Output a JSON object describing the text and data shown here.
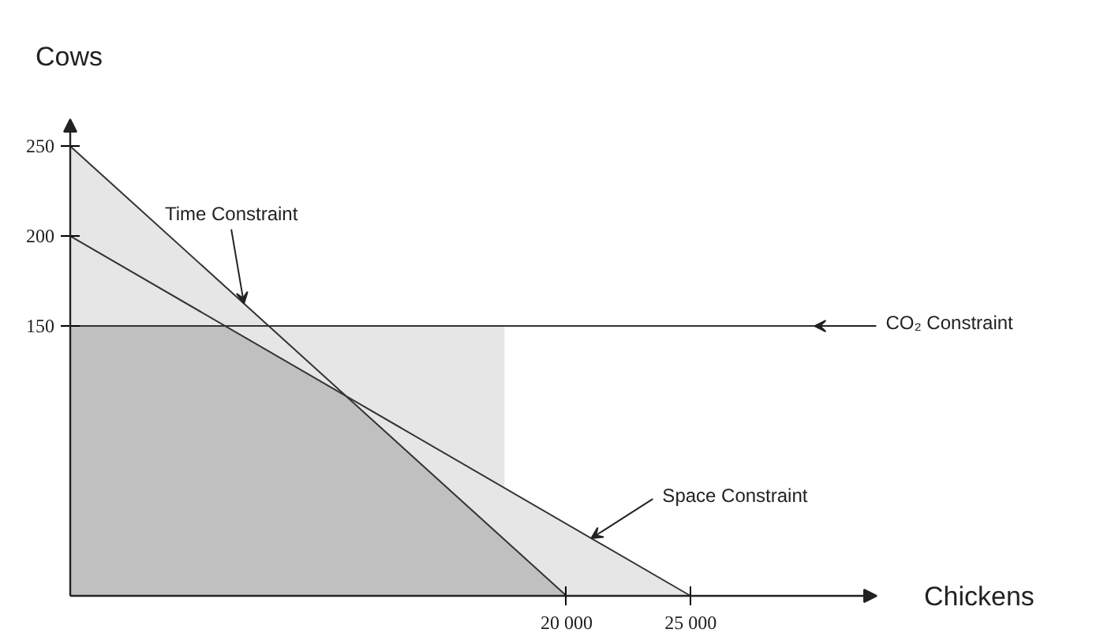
{
  "chart_data": {
    "type": "line",
    "xlabel": "Chickens",
    "ylabel": "Cows",
    "xlim": [
      0,
      32500
    ],
    "ylim": [
      0,
      265
    ],
    "xticks": [
      {
        "value": 20000,
        "label": "20 000"
      },
      {
        "value": 25000,
        "label": "25 000"
      }
    ],
    "yticks": [
      150,
      200,
      250
    ],
    "grid": false,
    "marker": "none",
    "line_style": "solid",
    "series": [
      {
        "type": "area",
        "color": "#e6e6e6",
        "x": [
          0,
          8000,
          17500,
          17500,
          25000
        ],
        "values": [
          250,
          150,
          150,
          60,
          0
        ]
      },
      {
        "type": "area",
        "color": "#c0c0c0",
        "x": [
          0,
          6250,
          11111,
          20000
        ],
        "values": [
          150,
          150,
          111,
          0
        ]
      },
      {
        "color": "#333333",
        "x": [
          0,
          20000
        ],
        "values": [
          250,
          0
        ]
      },
      {
        "color": "#333333",
        "x": [
          0,
          25000
        ],
        "values": [
          200,
          0
        ]
      },
      {
        "color": "#333333",
        "x": [
          0,
          30000
        ],
        "values": [
          150,
          150
        ]
      }
    ],
    "annotations": [
      {
        "text": "Time Constraint",
        "x": 7000,
        "y": 162.5
      },
      {
        "text": "Space Constraint",
        "x": 21000,
        "y": 32
      },
      {
        "text": "CO₂ Constraint",
        "x": 30000,
        "y": 150
      }
    ]
  }
}
